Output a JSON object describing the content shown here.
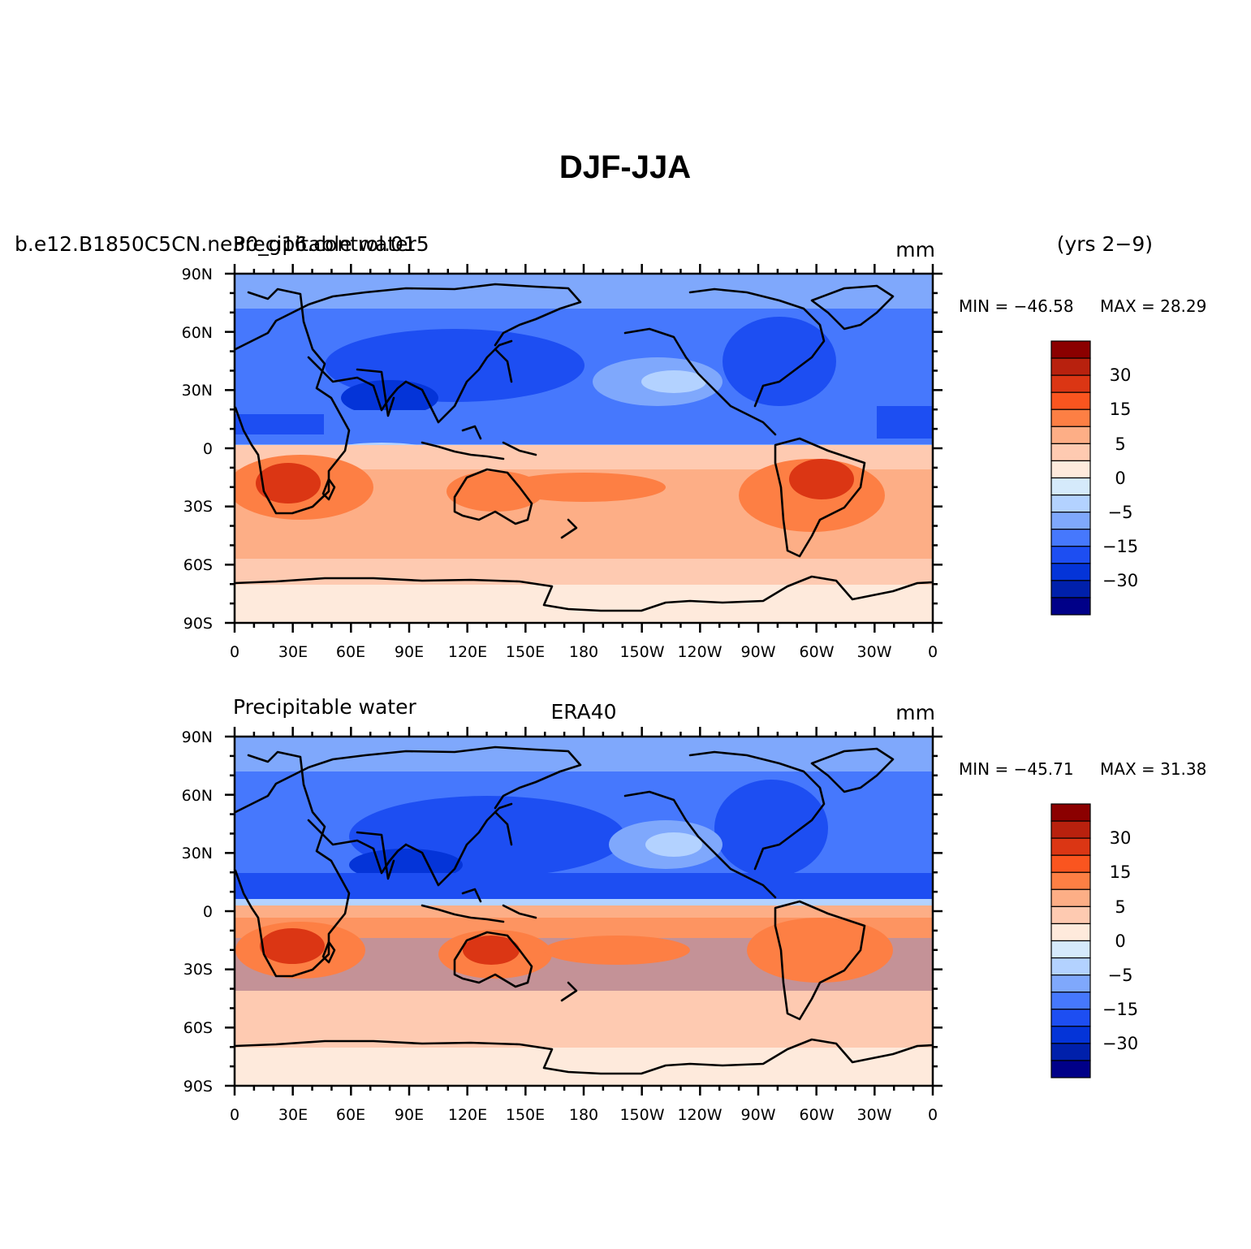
{
  "figure": {
    "title": "DJF-JJA",
    "period": "(yrs 2−9)",
    "colors": {
      "levels": [
        "#8b0000",
        "#b8210e",
        "#db3614",
        "#fa551f",
        "#fd7f44",
        "#fdae86",
        "#fecab1",
        "#feeadc",
        "#d5eafb",
        "#b3d2ff",
        "#7fa8fc",
        "#4678fd",
        "#1d4ef2",
        "#0434d8",
        "#0020ab",
        "#000088"
      ]
    },
    "colorbar_labels": [
      "30",
      "15",
      "5",
      "0",
      "−5",
      "−15",
      "−30"
    ],
    "x_ticks": [
      "0",
      "30E",
      "60E",
      "90E",
      "120E",
      "150E",
      "180",
      "150W",
      "120W",
      "90W",
      "60W",
      "30W",
      "0"
    ],
    "y_ticks": [
      "90N",
      "60N",
      "30N",
      "0",
      "30S",
      "60S",
      "90S"
    ]
  },
  "panels": [
    {
      "left_title": "b.e12.B1850C5CN.ne30_g16.control.015",
      "left_title_overprint": "Precipitable water",
      "center_title": "",
      "units": "mm",
      "min_label": "MIN = −46.58",
      "max_label": "MAX =  28.29"
    },
    {
      "left_title": "Precipitable water",
      "left_title_overprint": "",
      "center_title": "ERA40",
      "units": "mm",
      "min_label": "MIN = −45.71",
      "max_label": "MAX =  31.38"
    }
  ]
}
